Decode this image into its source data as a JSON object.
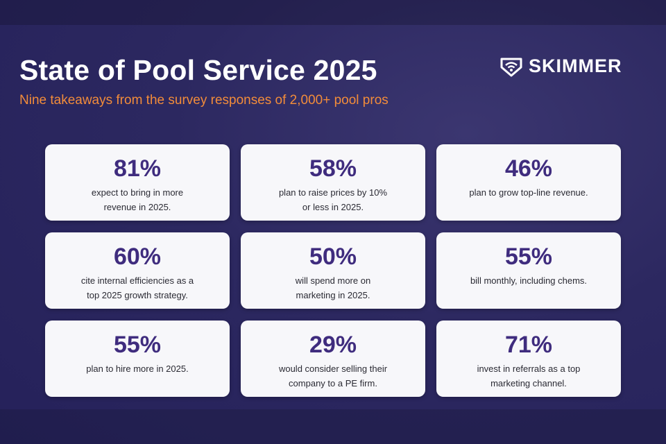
{
  "header": {
    "title": "State of Pool Service 2025",
    "subtitle": "Nine takeaways from the survey responses of 2,000+ pool pros",
    "logo": "SKIMMER"
  },
  "cards": [
    {
      "stat": "81%",
      "lines": [
        "expect to bring in more",
        "revenue in 2025."
      ]
    },
    {
      "stat": "58%",
      "lines": [
        "plan to raise prices by 10%",
        "or less in 2025."
      ]
    },
    {
      "stat": "46%",
      "lines": [
        "plan to grow top-line revenue."
      ]
    },
    {
      "stat": "60%",
      "lines": [
        "cite internal efficiencies as a",
        "top 2025 growth strategy."
      ]
    },
    {
      "stat": "50%",
      "lines": [
        "will spend more on",
        "marketing in 2025."
      ]
    },
    {
      "stat": "55%",
      "lines": [
        "bill monthly, including chems."
      ]
    },
    {
      "stat": "55%",
      "lines": [
        "plan to hire more in 2025."
      ]
    },
    {
      "stat": "29%",
      "lines": [
        "would consider selling their",
        "company to a PE firm."
      ]
    },
    {
      "stat": "71%",
      "lines": [
        "invest in referrals as a top",
        "marketing channel."
      ]
    }
  ]
}
